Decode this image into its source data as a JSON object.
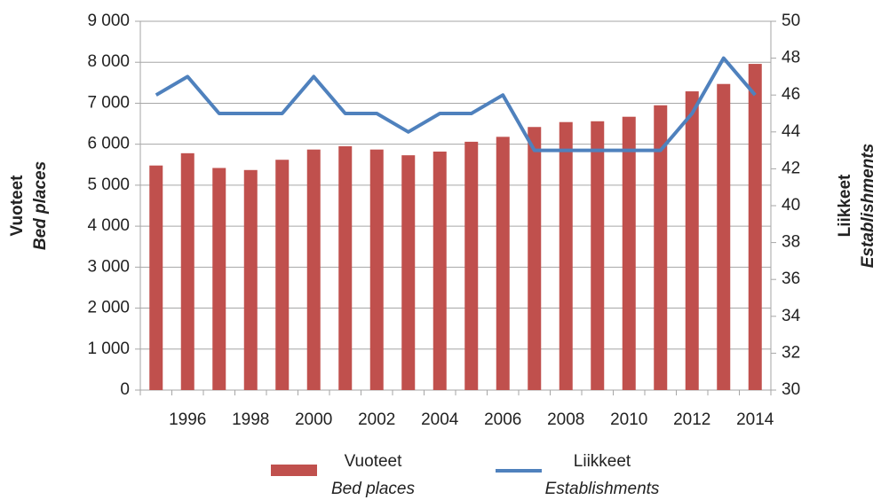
{
  "chart_data": {
    "type": "bar-line",
    "categories": [
      null,
      "1996",
      null,
      "1998",
      null,
      "2000",
      null,
      "2002",
      null,
      "2004",
      null,
      "2006",
      null,
      "2008",
      null,
      "2010",
      null,
      "2012",
      null,
      "2014"
    ],
    "series": [
      {
        "name": "Vuoteet",
        "name_en": "Bed places",
        "type": "bar",
        "color": "#c0504d",
        "values": [
          5480,
          5780,
          5420,
          5370,
          5620,
          5870,
          5950,
          5870,
          5730,
          5820,
          6060,
          6180,
          6420,
          6540,
          6560,
          6670,
          6950,
          7290,
          7470,
          7960
        ]
      },
      {
        "name": "Liikkeet",
        "name_en": "Establishments",
        "type": "line",
        "color": "#4f81bd",
        "axis": "y2",
        "values": [
          46,
          47,
          45,
          45,
          45,
          47,
          45,
          45,
          44,
          45,
          45,
          46,
          43,
          43,
          43,
          43,
          43,
          45,
          48,
          46
        ]
      }
    ],
    "ylabel": "Vuoteet",
    "ylabel_en": "Bed places",
    "y2label": "Liikkeet",
    "y2label_en": "Establishments",
    "ylim": [
      0,
      9000
    ],
    "yticks": [
      0,
      {
        "value": 1000,
        "label": "1 000"
      },
      {
        "value": 2000,
        "label": "2 000"
      },
      {
        "value": 3000,
        "label": "3 000"
      },
      {
        "value": 4000,
        "label": "4 000"
      },
      {
        "value": 5000,
        "label": "5 000"
      },
      {
        "value": 6000,
        "label": "6 000"
      },
      {
        "value": 7000,
        "label": "7 000"
      },
      {
        "value": 8000,
        "label": "8 000"
      },
      {
        "value": 9000,
        "label": "9 000"
      }
    ],
    "y2lim": [
      30,
      50
    ],
    "y2ticks": [
      30,
      32,
      34,
      36,
      38,
      40,
      42,
      44,
      46,
      48,
      50
    ],
    "grid": true
  }
}
